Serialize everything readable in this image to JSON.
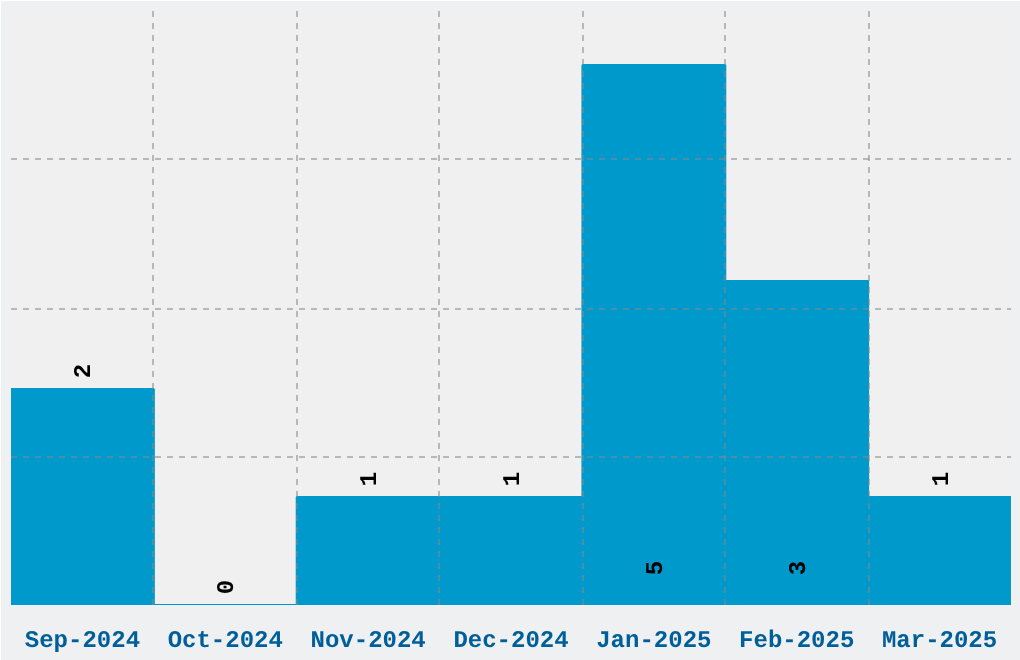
{
  "chart_data": {
    "type": "bar",
    "categories": [
      "Sep-2024",
      "Oct-2024",
      "Nov-2024",
      "Dec-2024",
      "Jan-2025",
      "Feb-2025",
      "Mar-2025"
    ],
    "values": [
      2,
      0,
      1,
      1,
      5,
      3,
      1
    ],
    "color": "#0099cc",
    "ylim": [
      0,
      5.5
    ],
    "yticks": [
      {
        "value": 1.375,
        "label": null
      },
      {
        "value": 2.75,
        "label": null
      },
      {
        "value": 4.125,
        "label": null
      }
    ],
    "tick_labels": "x",
    "grid": true,
    "data_labels": true
  }
}
